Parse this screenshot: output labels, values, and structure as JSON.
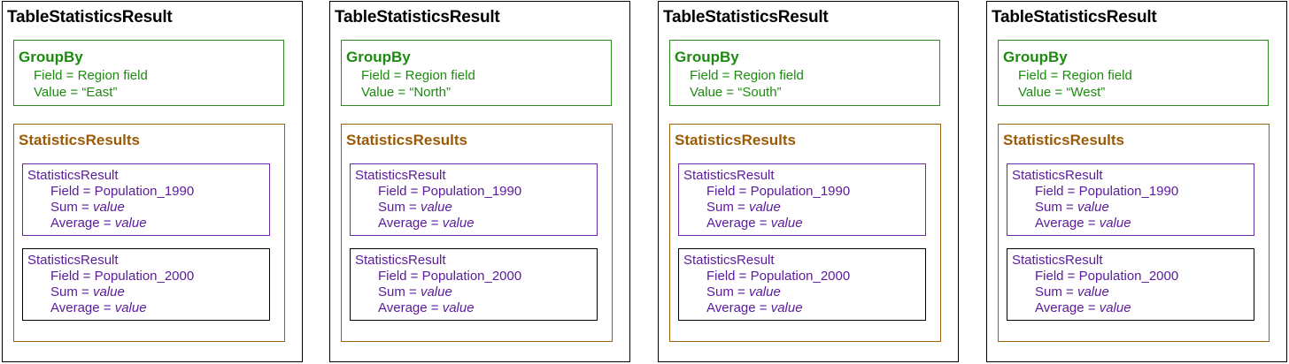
{
  "panels": [
    {
      "title": "TableStatisticsResult",
      "groupby": {
        "title": "GroupBy",
        "field_label": "Field = Region field",
        "value_label": "Value = “East”"
      },
      "statistics": {
        "title": "StatisticsResults",
        "results": [
          {
            "name": "StatisticsResult",
            "field": "Field = Population_1990",
            "sum_prefix": "Sum = ",
            "sum_value": "value",
            "avg_prefix": "Average = ",
            "avg_value": "value"
          },
          {
            "name": "StatisticsResult",
            "field": "Field = Population_2000",
            "sum_prefix": "Sum = ",
            "sum_value": "value",
            "avg_prefix": "Average = ",
            "avg_value": "value"
          }
        ]
      }
    },
    {
      "title": "TableStatisticsResult",
      "groupby": {
        "title": "GroupBy",
        "field_label": "Field = Region field",
        "value_label": "Value = “North”"
      },
      "statistics": {
        "title": "StatisticsResults",
        "results": [
          {
            "name": "StatisticsResult",
            "field": "Field = Population_1990",
            "sum_prefix": "Sum = ",
            "sum_value": "value",
            "avg_prefix": "Average = ",
            "avg_value": "value"
          },
          {
            "name": "StatisticsResult",
            "field": "Field = Population_2000",
            "sum_prefix": "Sum = ",
            "sum_value": "value",
            "avg_prefix": "Average = ",
            "avg_value": "value"
          }
        ]
      }
    },
    {
      "title": "TableStatisticsResult",
      "groupby": {
        "title": "GroupBy",
        "field_label": "Field = Region field",
        "value_label": "Value = “South”"
      },
      "statistics": {
        "title": "StatisticsResults",
        "results": [
          {
            "name": "StatisticsResult",
            "field": "Field = Population_1990",
            "sum_prefix": "Sum = ",
            "sum_value": "value",
            "avg_prefix": "Average = ",
            "avg_value": "value"
          },
          {
            "name": "StatisticsResult",
            "field": "Field = Population_2000",
            "sum_prefix": "Sum = ",
            "sum_value": "value",
            "avg_prefix": "Average = ",
            "avg_value": "value"
          }
        ]
      }
    },
    {
      "title": "TableStatisticsResult",
      "groupby": {
        "title": "GroupBy",
        "field_label": "Field = Region field",
        "value_label": "Value = “West”"
      },
      "statistics": {
        "title": "StatisticsResults",
        "results": [
          {
            "name": "StatisticsResult",
            "field": "Field = Population_1990",
            "sum_prefix": "Sum = ",
            "sum_value": "value",
            "avg_prefix": "Average = ",
            "avg_value": "value"
          },
          {
            "name": "StatisticsResult",
            "field": "Field = Population_2000",
            "sum_prefix": "Sum = ",
            "sum_value": "value",
            "avg_prefix": "Average = ",
            "avg_value": "value"
          }
        ]
      }
    }
  ],
  "colors": {
    "groupby": "#1d8a10",
    "statistics": "#9a5a06",
    "result": "#5b1a9e",
    "border": "#000000"
  }
}
